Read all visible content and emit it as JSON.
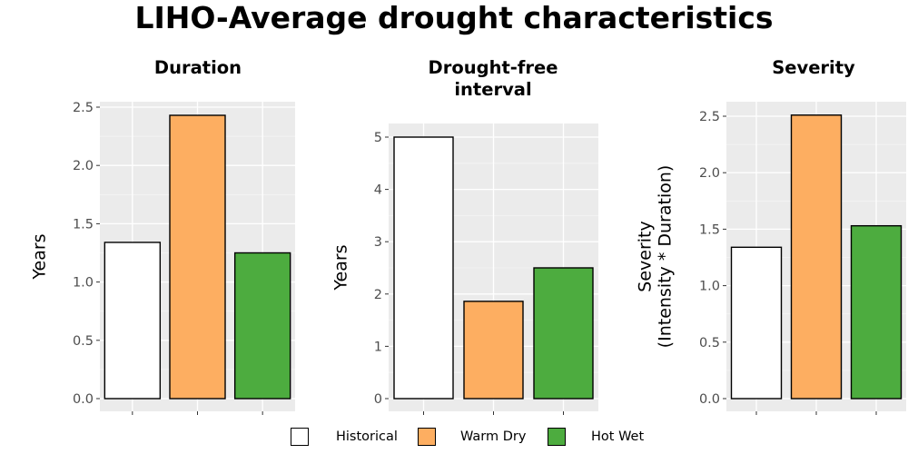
{
  "title": "LIHO-Average drought characteristics",
  "legend": {
    "items": [
      {
        "label": "Historical",
        "color": "#ffffff"
      },
      {
        "label": "Warm Dry",
        "color": "#fdae61"
      },
      {
        "label": "Hot Wet",
        "color": "#4dac3f"
      }
    ]
  },
  "chart_data": [
    {
      "type": "bar",
      "title": "Duration",
      "ylabel": "Years",
      "xlabel": "",
      "categories": [
        "Historical",
        "Warm Dry",
        "Hot Wet"
      ],
      "values": [
        1.34,
        2.43,
        1.25
      ],
      "ylim": [
        0,
        2.5
      ],
      "yticks": [
        "0.0",
        "0.5",
        "1.0",
        "1.5",
        "2.0",
        "2.5"
      ],
      "colors": [
        "#ffffff",
        "#fdae61",
        "#4dac3f"
      ],
      "grid": true
    },
    {
      "type": "bar",
      "title": "Drought-free interval",
      "ylabel": "Years",
      "xlabel": "",
      "categories": [
        "Historical",
        "Warm Dry",
        "Hot Wet"
      ],
      "values": [
        5.0,
        1.86,
        2.5
      ],
      "ylim": [
        0,
        5
      ],
      "yticks": [
        "0",
        "1",
        "2",
        "3",
        "4",
        "5"
      ],
      "colors": [
        "#ffffff",
        "#fdae61",
        "#4dac3f"
      ],
      "grid": true
    },
    {
      "type": "bar",
      "title": "Severity",
      "ylabel": "Severity (Intensity * Duration)",
      "xlabel": "",
      "categories": [
        "Historical",
        "Warm Dry",
        "Hot Wet"
      ],
      "values": [
        1.34,
        2.51,
        1.53
      ],
      "ylim": [
        0,
        2.5
      ],
      "yticks": [
        "0.0",
        "0.5",
        "1.0",
        "1.5",
        "2.0",
        "2.5"
      ],
      "colors": [
        "#ffffff",
        "#fdae61",
        "#4dac3f"
      ],
      "grid": true
    }
  ]
}
